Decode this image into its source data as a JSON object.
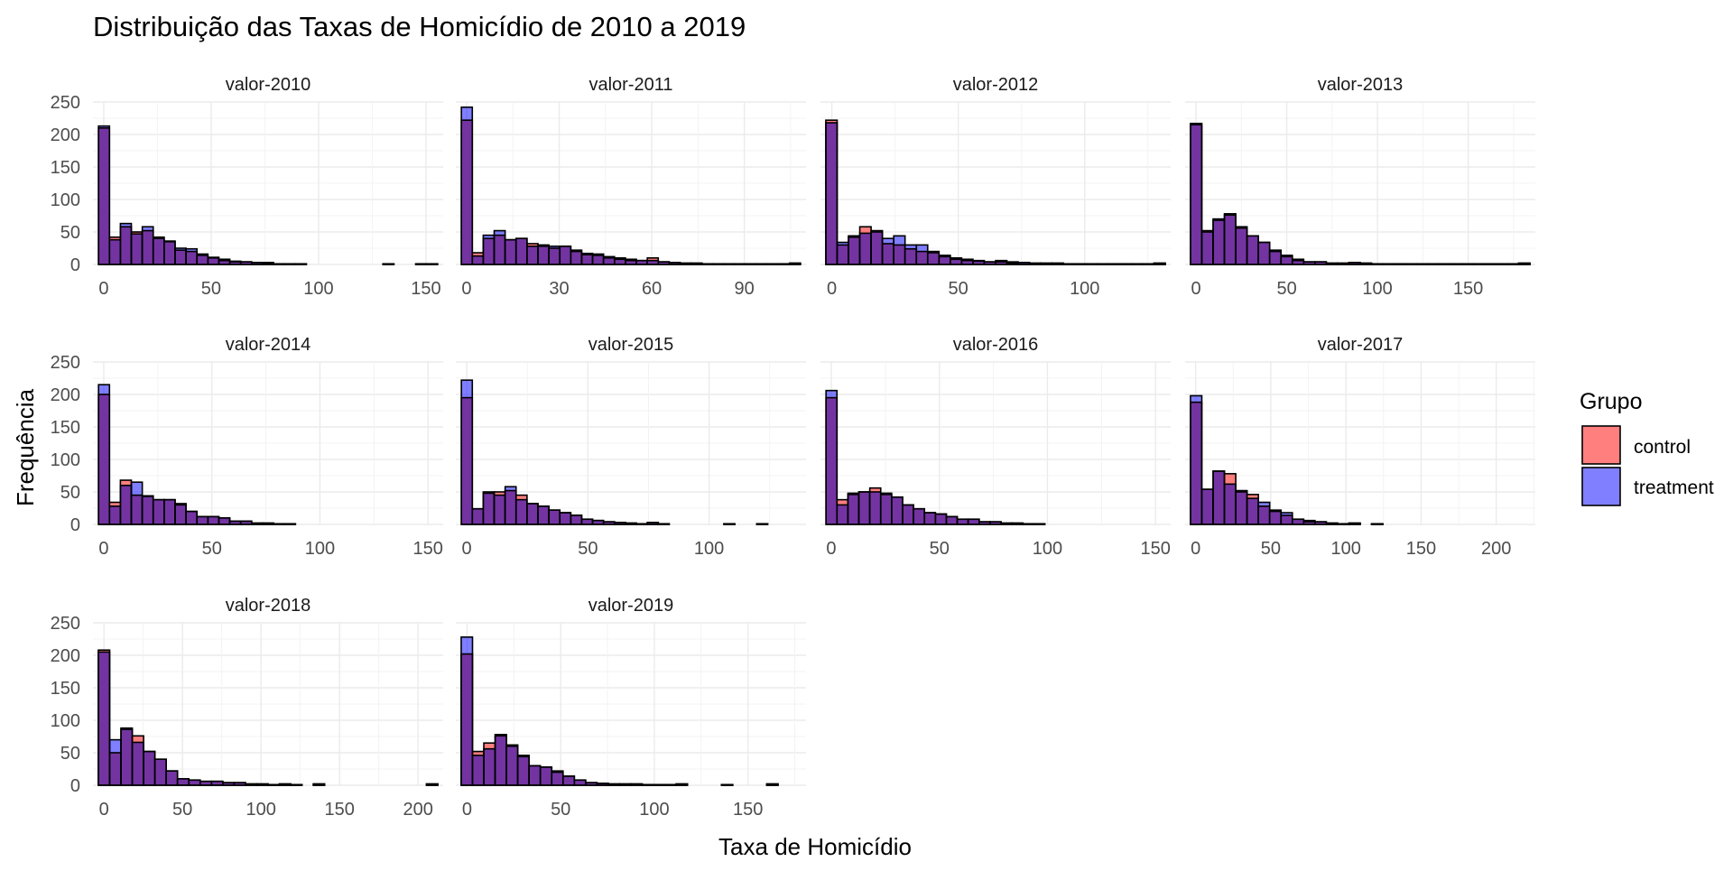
{
  "chart_data": {
    "type": "histogram-facets",
    "title": "Distribuição das Taxas de Homicídio de 2010 a 2019",
    "xlabel": "Taxa de Homicídio",
    "ylabel": "Frequência",
    "ylim": [
      0,
      250
    ],
    "y_ticks": [
      0,
      50,
      100,
      150,
      200,
      250
    ],
    "grid": true,
    "legend": {
      "title": "Grupo",
      "position": "right",
      "entries": [
        {
          "name": "control",
          "color": "#ff0000"
        },
        {
          "name": "treatment",
          "color": "#0000ff"
        }
      ]
    },
    "colors": {
      "control": "#ff0000",
      "treatment": "#0000ff",
      "overlap": "#7030a0",
      "grid": "#ebebeb",
      "text": "#4d4d4d"
    },
    "panels": [
      {
        "label": "valor-2010",
        "xlim": [
          -5,
          158
        ],
        "x_ticks": [
          0,
          50,
          100,
          150
        ],
        "control": [
          210,
          42,
          58,
          50,
          52,
          40,
          35,
          22,
          20,
          14,
          10,
          6,
          4,
          4,
          3,
          2,
          1,
          1,
          1,
          0,
          0,
          0,
          0,
          0,
          0,
          0,
          1,
          0,
          0,
          1,
          1
        ],
        "treatment": [
          213,
          38,
          63,
          47,
          58,
          42,
          36,
          25,
          24,
          16,
          11,
          8,
          5,
          4,
          3,
          3,
          1,
          1,
          1,
          0,
          0,
          0,
          0,
          0,
          0,
          0,
          1,
          0,
          0,
          1,
          1
        ]
      },
      {
        "label": "valor-2011",
        "xlim": [
          -3.5,
          110
        ],
        "x_ticks": [
          0,
          30,
          60,
          90
        ],
        "control": [
          222,
          18,
          40,
          45,
          38,
          40,
          32,
          28,
          25,
          28,
          20,
          15,
          14,
          10,
          8,
          6,
          6,
          10,
          4,
          3,
          2,
          2,
          1,
          1,
          1,
          1,
          1,
          1,
          1,
          1,
          2
        ],
        "treatment": [
          242,
          13,
          45,
          52,
          38,
          40,
          28,
          30,
          28,
          28,
          22,
          17,
          16,
          12,
          10,
          8,
          6,
          6,
          4,
          3,
          2,
          2,
          1,
          1,
          1,
          1,
          1,
          1,
          1,
          1,
          2
        ]
      },
      {
        "label": "valor-2012",
        "xlim": [
          -4.5,
          134
        ],
        "x_ticks": [
          0,
          50,
          100
        ],
        "control": [
          222,
          30,
          42,
          58,
          50,
          32,
          30,
          24,
          20,
          18,
          12,
          8,
          6,
          5,
          4,
          6,
          2,
          3,
          2,
          2,
          2,
          1,
          1,
          1,
          1,
          1,
          1,
          1,
          1,
          2
        ],
        "treatment": [
          218,
          34,
          44,
          48,
          52,
          40,
          44,
          30,
          30,
          20,
          14,
          10,
          8,
          6,
          4,
          4,
          4,
          3,
          2,
          2,
          2,
          1,
          1,
          1,
          1,
          1,
          1,
          1,
          1,
          2
        ]
      },
      {
        "label": "valor-2013",
        "xlim": [
          -6,
          187
        ],
        "x_ticks": [
          0,
          50,
          100,
          150
        ],
        "control": [
          217,
          52,
          70,
          78,
          58,
          44,
          34,
          20,
          12,
          6,
          4,
          4,
          2,
          2,
          3,
          2,
          1,
          1,
          1,
          1,
          1,
          1,
          1,
          1,
          1,
          1,
          1,
          1,
          1,
          2
        ],
        "treatment": [
          215,
          50,
          68,
          76,
          56,
          44,
          34,
          22,
          14,
          8,
          4,
          4,
          2,
          2,
          3,
          2,
          1,
          1,
          1,
          1,
          1,
          1,
          1,
          1,
          1,
          1,
          1,
          1,
          1,
          2
        ]
      },
      {
        "label": "valor-2014",
        "xlim": [
          -5,
          157
        ],
        "x_ticks": [
          0,
          50,
          100,
          150
        ],
        "control": [
          200,
          34,
          68,
          45,
          43,
          38,
          38,
          30,
          20,
          12,
          12,
          10,
          5,
          5,
          2,
          2,
          1,
          1,
          0,
          0,
          0,
          0,
          0,
          0,
          0,
          0,
          0,
          0,
          0,
          0,
          0
        ],
        "treatment": [
          215,
          28,
          60,
          65,
          44,
          38,
          38,
          32,
          20,
          12,
          12,
          10,
          5,
          5,
          2,
          2,
          1,
          1,
          0,
          0,
          0,
          0,
          0,
          0,
          0,
          0,
          0,
          0,
          0,
          0,
          0
        ]
      },
      {
        "label": "valor-2015",
        "xlim": [
          -4.5,
          140
        ],
        "x_ticks": [
          0,
          50,
          100
        ],
        "control": [
          195,
          24,
          50,
          50,
          52,
          45,
          32,
          28,
          22,
          18,
          14,
          8,
          6,
          4,
          3,
          2,
          1,
          3,
          1,
          0,
          0,
          0,
          0,
          0,
          1,
          0,
          0,
          1,
          0,
          0,
          0
        ],
        "treatment": [
          222,
          24,
          48,
          45,
          58,
          38,
          32,
          28,
          22,
          18,
          14,
          8,
          6,
          4,
          3,
          2,
          1,
          3,
          1,
          0,
          0,
          0,
          0,
          0,
          1,
          0,
          0,
          1,
          0,
          0,
          0
        ]
      },
      {
        "label": "valor-2016",
        "xlim": [
          -5,
          157
        ],
        "x_ticks": [
          0,
          50,
          100,
          150
        ],
        "control": [
          195,
          38,
          48,
          50,
          56,
          46,
          42,
          30,
          24,
          18,
          16,
          12,
          8,
          8,
          4,
          4,
          2,
          2,
          1,
          1,
          0,
          0,
          0,
          0,
          0,
          0,
          0,
          0,
          0,
          0,
          0
        ],
        "treatment": [
          206,
          30,
          46,
          50,
          50,
          48,
          42,
          30,
          24,
          18,
          16,
          12,
          8,
          8,
          4,
          4,
          2,
          2,
          1,
          1,
          0,
          0,
          0,
          0,
          0,
          0,
          0,
          0,
          0,
          0,
          0
        ],
        "_": ""
      },
      {
        "label": "valor-2017",
        "xlim": [
          -7,
          226
        ],
        "x_ticks": [
          0,
          50,
          100,
          150,
          200
        ],
        "control": [
          188,
          54,
          82,
          78,
          52,
          46,
          28,
          20,
          14,
          8,
          6,
          4,
          2,
          1,
          2,
          0,
          1,
          0,
          0,
          0,
          0,
          0,
          0,
          0,
          0,
          0,
          0,
          0,
          0,
          0
        ],
        "treatment": [
          198,
          54,
          82,
          62,
          50,
          40,
          34,
          22,
          18,
          8,
          4,
          4,
          2,
          1,
          2,
          0,
          1,
          0,
          0,
          0,
          0,
          0,
          0,
          0,
          0,
          0,
          0,
          0,
          0,
          0
        ]
      },
      {
        "label": "valor-2018",
        "xlim": [
          -7,
          216
        ],
        "x_ticks": [
          0,
          50,
          100,
          150,
          200
        ],
        "control": [
          208,
          50,
          88,
          76,
          52,
          40,
          22,
          10,
          8,
          6,
          6,
          4,
          4,
          2,
          2,
          1,
          2,
          1,
          0,
          2,
          0,
          0,
          0,
          0,
          0,
          0,
          0,
          0,
          0,
          2
        ],
        "treatment": [
          205,
          70,
          86,
          66,
          52,
          40,
          22,
          10,
          8,
          6,
          6,
          4,
          4,
          2,
          2,
          1,
          2,
          1,
          0,
          2,
          0,
          0,
          0,
          0,
          0,
          0,
          0,
          0,
          0,
          2
        ]
      },
      {
        "label": "valor-2019",
        "xlim": [
          -6,
          181
        ],
        "x_ticks": [
          0,
          50,
          100,
          150
        ],
        "control": [
          202,
          52,
          65,
          76,
          60,
          44,
          30,
          28,
          22,
          14,
          8,
          4,
          3,
          2,
          2,
          2,
          1,
          1,
          1,
          2,
          0,
          0,
          0,
          1,
          0,
          0,
          0,
          2,
          0,
          0
        ],
        "treatment": [
          228,
          46,
          56,
          78,
          62,
          46,
          30,
          28,
          20,
          14,
          8,
          4,
          3,
          2,
          2,
          2,
          1,
          1,
          1,
          2,
          0,
          0,
          0,
          1,
          0,
          0,
          0,
          2,
          0,
          0
        ]
      }
    ]
  }
}
